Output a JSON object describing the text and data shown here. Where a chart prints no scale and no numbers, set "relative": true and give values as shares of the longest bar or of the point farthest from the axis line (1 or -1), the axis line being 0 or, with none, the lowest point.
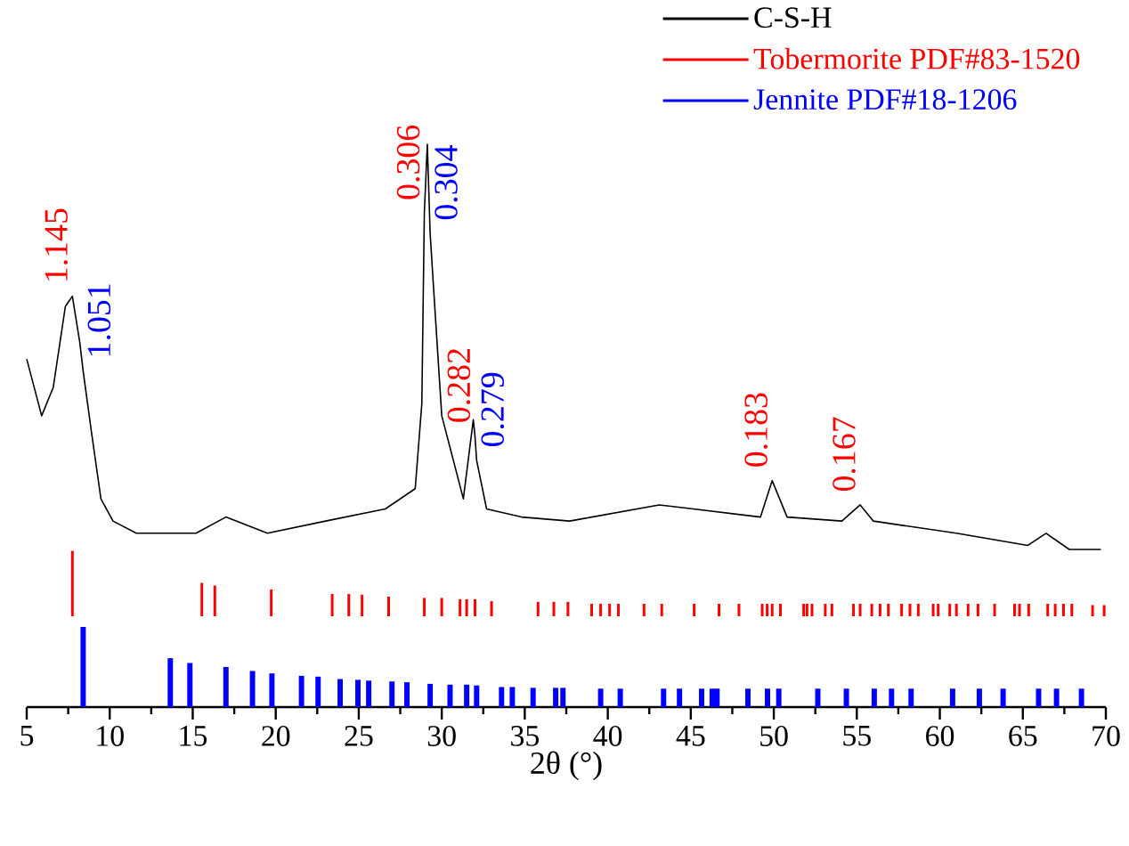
{
  "chart_data": [
    {
      "type": "line",
      "relative": true,
      "xlim": [
        5,
        70
      ],
      "tick_labels": false,
      "legend": "top right",
      "series": [
        {
          "name": "C-S-H",
          "color": "#000000",
          "x": [
            5.0,
            5.9,
            6.6,
            7.33,
            7.75,
            8.2,
            8.4,
            8.9,
            9.47,
            10.2,
            11.6,
            15.2,
            17.0,
            19.5,
            23.0,
            26.6,
            28.4,
            28.8,
            28.95,
            29.13,
            29.3,
            29.5,
            30.0,
            31.3,
            31.9,
            32.0,
            32.1,
            32.7,
            34.8,
            37.7,
            43.1,
            49.2,
            49.9,
            50.8,
            54.1,
            55.2,
            56.0,
            61.0,
            65.3,
            66.4,
            67.8,
            69.7
          ],
          "values": [
            0.47,
            0.33,
            0.4,
            0.6,
            0.625,
            0.51,
            0.44,
            0.29,
            0.125,
            0.07,
            0.04,
            0.04,
            0.08,
            0.04,
            0.07,
            0.1,
            0.15,
            0.36,
            0.83,
            1.0,
            0.78,
            0.65,
            0.33,
            0.125,
            0.32,
            0.28,
            0.22,
            0.1,
            0.08,
            0.07,
            0.11,
            0.08,
            0.17,
            0.08,
            0.07,
            0.11,
            0.07,
            0.04,
            0.01,
            0.04,
            0.0,
            0.0
          ]
        }
      ],
      "annotations": [
        {
          "text": "1.145",
          "x": 7.75,
          "y": 0.625
        },
        {
          "text": "1.051",
          "x": 8.4,
          "y": 0.44
        },
        {
          "text": "0.306",
          "x": 28.95,
          "y": 0.83
        },
        {
          "text": "0.304",
          "x": 29.3,
          "y": 0.78
        },
        {
          "text": "0.282",
          "x": 32.0,
          "y": 0.28
        },
        {
          "text": "0.279",
          "x": 32.1,
          "y": 0.22
        },
        {
          "text": "0.183",
          "x": 49.9,
          "y": 0.17
        },
        {
          "text": "0.167",
          "x": 55.2,
          "y": 0.11
        }
      ]
    },
    {
      "type": "bar",
      "relative": true,
      "xlim": [
        5,
        70
      ],
      "tick_labels": false,
      "series": [
        {
          "name": "Tobermorite PDF#83-1520",
          "color": "#ff0000",
          "x": [
            7.75,
            15.55,
            16.33,
            19.73,
            23.4,
            24.4,
            25.2,
            26.8,
            28.95,
            30.0,
            31.1,
            31.5,
            32.0,
            33.0,
            35.8,
            36.75,
            37.6,
            39.03,
            39.57,
            40.11,
            40.64,
            42.18,
            43.25,
            45.2,
            46.7,
            47.9,
            49.3,
            49.6,
            49.9,
            50.4,
            51.8,
            52.0,
            52.3,
            53.1,
            53.5,
            54.8,
            55.2,
            55.9,
            56.4,
            56.9,
            57.7,
            58.2,
            58.7,
            59.6,
            59.9,
            60.6,
            61.0,
            61.7,
            62.3,
            63.3,
            64.5,
            64.8,
            65.35,
            66.5,
            66.95,
            67.45,
            67.95,
            69.2,
            69.9
          ],
          "values": [
            1.0,
            0.51,
            0.47,
            0.41,
            0.34,
            0.34,
            0.33,
            0.3,
            0.28,
            0.28,
            0.26,
            0.26,
            0.26,
            0.23,
            0.22,
            0.22,
            0.22,
            0.19,
            0.19,
            0.19,
            0.19,
            0.19,
            0.19,
            0.19,
            0.19,
            0.19,
            0.19,
            0.19,
            0.19,
            0.19,
            0.19,
            0.19,
            0.19,
            0.19,
            0.19,
            0.19,
            0.19,
            0.19,
            0.19,
            0.19,
            0.19,
            0.19,
            0.19,
            0.19,
            0.19,
            0.19,
            0.19,
            0.19,
            0.19,
            0.19,
            0.19,
            0.19,
            0.19,
            0.19,
            0.19,
            0.19,
            0.19,
            0.17,
            0.17
          ]
        }
      ]
    },
    {
      "type": "bar",
      "relative": true,
      "xlim": [
        5,
        70
      ],
      "xticks": [
        5,
        10,
        15,
        20,
        25,
        30,
        35,
        40,
        45,
        50,
        55,
        60,
        65,
        70
      ],
      "xlabel": "2θ (°)",
      "tick_labels": "x",
      "series": [
        {
          "name": "Jennite PDF#18-1206",
          "color": "#0000ff",
          "x": [
            8.4,
            13.65,
            14.83,
            17.0,
            18.6,
            19.77,
            21.55,
            22.55,
            23.88,
            24.95,
            25.6,
            27.0,
            27.9,
            29.3,
            30.5,
            31.5,
            32.1,
            33.6,
            34.25,
            35.5,
            36.86,
            37.3,
            39.57,
            40.75,
            43.36,
            44.32,
            45.65,
            46.29,
            46.58,
            48.44,
            49.62,
            50.3,
            52.65,
            54.37,
            56.05,
            57.09,
            58.27,
            60.77,
            62.38,
            63.81,
            65.95,
            67.03,
            68.53
          ],
          "values": [
            1.0,
            0.61,
            0.55,
            0.5,
            0.45,
            0.42,
            0.39,
            0.38,
            0.35,
            0.34,
            0.33,
            0.32,
            0.31,
            0.29,
            0.28,
            0.28,
            0.27,
            0.25,
            0.25,
            0.24,
            0.24,
            0.24,
            0.23,
            0.23,
            0.23,
            0.23,
            0.23,
            0.23,
            0.23,
            0.23,
            0.23,
            0.23,
            0.23,
            0.23,
            0.23,
            0.23,
            0.23,
            0.23,
            0.23,
            0.23,
            0.23,
            0.23,
            0.23
          ]
        }
      ]
    }
  ]
}
